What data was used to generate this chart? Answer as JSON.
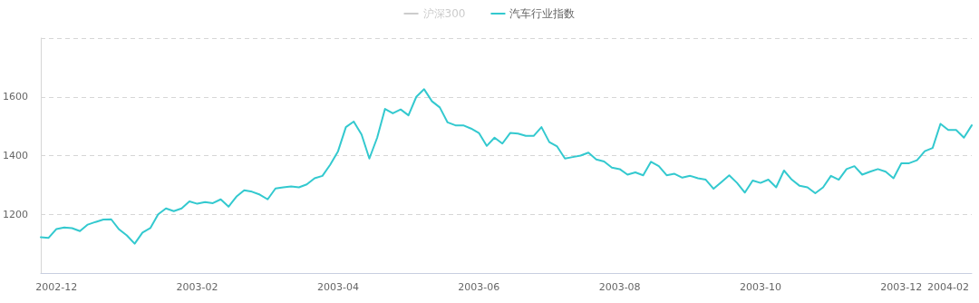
{
  "chart_data": {
    "type": "line",
    "categories": [
      null,
      null,
      "2002-12",
      null,
      null,
      null,
      null,
      null,
      null,
      null,
      null,
      null,
      null,
      null,
      null,
      null,
      null,
      null,
      null,
      null,
      "2003-02",
      null,
      null,
      null,
      null,
      null,
      null,
      null,
      null,
      null,
      null,
      null,
      null,
      null,
      null,
      null,
      null,
      null,
      "2003-04",
      null,
      null,
      null,
      null,
      null,
      null,
      null,
      null,
      null,
      null,
      null,
      null,
      null,
      null,
      null,
      null,
      null,
      "2003-06",
      null,
      null,
      null,
      null,
      null,
      null,
      null,
      null,
      null,
      null,
      null,
      null,
      null,
      null,
      null,
      null,
      null,
      "2003-08",
      null,
      null,
      null,
      null,
      null,
      null,
      null,
      null,
      null,
      null,
      null,
      null,
      null,
      null,
      null,
      null,
      null,
      "2003-10",
      null,
      null,
      null,
      null,
      null,
      null,
      null,
      null,
      null,
      null,
      null,
      null,
      null,
      null,
      null,
      null,
      null,
      "2003-12",
      null,
      null,
      null,
      null,
      null,
      "2004-02",
      null,
      null,
      null
    ],
    "series": [
      {
        "name": "沪深300",
        "color": "#cccccc",
        "values": [
          null,
          null,
          null,
          null,
          null,
          null,
          null,
          null,
          null,
          null,
          null,
          null,
          null,
          null,
          null,
          null,
          null,
          null,
          null,
          null,
          null,
          null,
          null,
          null,
          null,
          null,
          null,
          null,
          null,
          null,
          null,
          null,
          null,
          null,
          null,
          null,
          null,
          null,
          null,
          null,
          null,
          null,
          null,
          null,
          null,
          null,
          null,
          null,
          null,
          null,
          null,
          null,
          null,
          null,
          null,
          null,
          null,
          null,
          null,
          null,
          null,
          null,
          null,
          null,
          null,
          null,
          null,
          null,
          null,
          null,
          null,
          null,
          null,
          null,
          null,
          null,
          null,
          null,
          null,
          null,
          null,
          null,
          null,
          null,
          null,
          null,
          null,
          null,
          null,
          null,
          null,
          null,
          null,
          null,
          null,
          null,
          null,
          null,
          null,
          null,
          null,
          null,
          null,
          null,
          null,
          null,
          null,
          null,
          null,
          null,
          null,
          null,
          null,
          null,
          null,
          null,
          null,
          null,
          null,
          null
        ]
      },
      {
        "name": "汽车行业指数",
        "color": "#33c9cf",
        "values": [
          1122,
          1120,
          1150,
          1155,
          1153,
          1143,
          1165,
          1174,
          1182,
          1183,
          1149,
          1128,
          1100,
          1138,
          1153,
          1200,
          1220,
          1211,
          1220,
          1244,
          1236,
          1242,
          1238,
          1251,
          1226,
          1260,
          1282,
          1277,
          1267,
          1251,
          1288,
          1292,
          1295,
          1292,
          1302,
          1323,
          1331,
          1369,
          1415,
          1497,
          1516,
          1472,
          1390,
          1461,
          1559,
          1544,
          1557,
          1537,
          1600,
          1626,
          1585,
          1564,
          1513,
          1503,
          1503,
          1492,
          1477,
          1433,
          1461,
          1441,
          1477,
          1475,
          1467,
          1467,
          1497,
          1446,
          1431,
          1390,
          1395,
          1400,
          1410,
          1387,
          1380,
          1359,
          1354,
          1335,
          1343,
          1333,
          1379,
          1364,
          1333,
          1338,
          1325,
          1331,
          1323,
          1318,
          1287,
          1310,
          1333,
          1307,
          1274,
          1315,
          1307,
          1318,
          1292,
          1349,
          1318,
          1297,
          1292,
          1272,
          1292,
          1331,
          1318,
          1354,
          1364,
          1335,
          1345,
          1354,
          1345,
          1323,
          1374,
          1374,
          1384,
          1415,
          1426,
          1508,
          1487,
          1487,
          1461,
          1503
        ]
      }
    ],
    "ylim": [
      1000,
      1800
    ],
    "yticks": [
      {
        "value": 1000,
        "label": null
      },
      1200,
      1400,
      1600,
      {
        "value": 1800,
        "label": null
      }
    ],
    "grid": "y",
    "legend": "top",
    "marker": "none",
    "line_style": "solid"
  }
}
